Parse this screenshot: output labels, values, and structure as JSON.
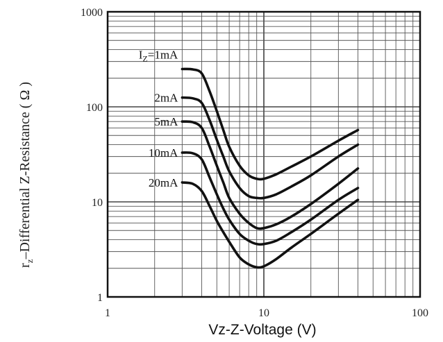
{
  "chart_data": {
    "type": "line",
    "xscale": "log",
    "yscale": "log",
    "xlim": [
      1,
      100
    ],
    "ylim": [
      1,
      1000
    ],
    "xlabel": "Vz-Z-Voltage (V)",
    "ylabel": "r",
    "ylabel_sub": "z",
    "ylabel_rest": "–Differential Z-Resistance ( Ω )",
    "x_ticks": [
      "1",
      "10",
      "100"
    ],
    "y_ticks": [
      "1",
      "10",
      "100",
      "1000"
    ],
    "grid": true,
    "series": [
      {
        "name": "IZ=1mA",
        "label_main": "I",
        "label_sub": "Z",
        "label_rest": "=1mA",
        "x": [
          3.0,
          3.5,
          4.0,
          4.5,
          5.0,
          5.5,
          6.0,
          7.0,
          8.0,
          9.0,
          10.0,
          12.0,
          15.0,
          20.0,
          30.0,
          40.0
        ],
        "y": [
          250,
          248,
          225,
          145,
          90,
          57,
          38,
          24,
          19,
          17.5,
          17.5,
          19.5,
          23.5,
          30,
          44,
          57
        ]
      },
      {
        "name": "2mA",
        "label_main": "2mA",
        "x": [
          3.0,
          3.5,
          4.0,
          4.5,
          5.0,
          5.5,
          6.0,
          7.0,
          8.0,
          9.0,
          10.0,
          12.0,
          15.0,
          20.0,
          30.0,
          40.0
        ],
        "y": [
          125,
          123,
          110,
          72,
          45,
          30,
          21,
          14,
          11.5,
          11,
          11,
          12,
          14.5,
          19,
          30,
          40
        ]
      },
      {
        "name": "5mA",
        "label_main": "5mA",
        "x": [
          3.0,
          3.5,
          4.0,
          4.5,
          5.0,
          5.5,
          6.0,
          7.0,
          8.0,
          9.0,
          10.0,
          12.0,
          15.0,
          20.0,
          30.0,
          40.0
        ],
        "y": [
          70,
          69,
          60,
          38,
          24,
          16,
          11,
          7.5,
          6,
          5.3,
          5.3,
          5.8,
          7,
          9.5,
          15.5,
          22.5
        ]
      },
      {
        "name": "10mA",
        "label_main": "10mA",
        "x": [
          3.0,
          3.5,
          4.0,
          4.5,
          5.0,
          5.5,
          6.0,
          7.0,
          8.0,
          9.0,
          10.0,
          12.0,
          15.0,
          20.0,
          30.0,
          40.0
        ],
        "y": [
          33,
          32.5,
          28,
          18,
          12,
          8.5,
          6.5,
          4.6,
          3.9,
          3.6,
          3.6,
          3.9,
          4.8,
          6.5,
          10.5,
          14
        ]
      },
      {
        "name": "20mA",
        "label_main": "20mA",
        "x": [
          3.0,
          3.5,
          4.0,
          4.5,
          5.0,
          5.5,
          6.0,
          7.0,
          8.0,
          9.0,
          10.0,
          12.0,
          15.0,
          20.0,
          30.0,
          40.0
        ],
        "y": [
          16,
          15.5,
          13,
          9,
          6.3,
          4.8,
          3.8,
          2.6,
          2.2,
          2.05,
          2.1,
          2.5,
          3.3,
          4.6,
          7.5,
          10.5
        ]
      }
    ]
  }
}
